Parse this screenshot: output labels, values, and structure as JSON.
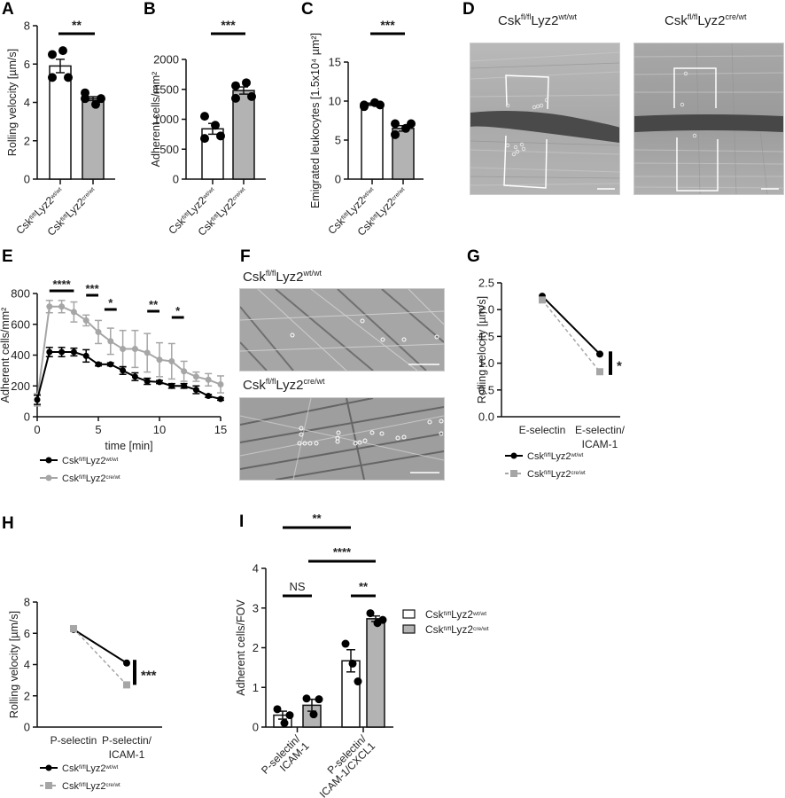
{
  "genotypes": {
    "wt": {
      "base": "Csk",
      "sup1": "fl/fl",
      "mid": "Lyz2",
      "sup2": "wt/wt"
    },
    "cre": {
      "base": "Csk",
      "sup1": "fl/fl",
      "mid": "Lyz2",
      "sup2": "cre/wt"
    }
  },
  "colors": {
    "wt": "#000000",
    "cre": "#a6a6a6",
    "bar_wt": "#ffffff",
    "bar_cre": "#b3b3b3"
  },
  "panels": {
    "A": {
      "letter": "A"
    },
    "B": {
      "letter": "B"
    },
    "C": {
      "letter": "C"
    },
    "D": {
      "letter": "D",
      "left_title": "Csk fl/fl Lyz2 wt/wt",
      "right_title": "Csk fl/fl Lyz2 cre/wt"
    },
    "E": {
      "letter": "E"
    },
    "F": {
      "letter": "F",
      "top_title": "Csk fl/fl Lyz2 wt/wt",
      "bottom_title": "Csk fl/fl Lyz2 cre/wt"
    },
    "G": {
      "letter": "G"
    },
    "H": {
      "letter": "H"
    },
    "I": {
      "letter": "I"
    }
  },
  "chart_data": [
    {
      "panel": "A",
      "type": "bar",
      "title": "",
      "ylabel": "Rolling velocity [µm/s]",
      "xlabel": "",
      "categories": [
        "Csk fl/fl Lyz2 wt/wt",
        "Csk fl/fl Lyz2 cre/wt"
      ],
      "values": [
        5.9,
        4.2
      ],
      "errors": [
        0.35,
        0.1
      ],
      "points": [
        [
          6.5,
          6.7,
          5.3,
          5.3
        ],
        [
          4.5,
          3.9,
          4.2,
          4.2
        ]
      ],
      "ylim": [
        0,
        8
      ],
      "yticks": [
        0,
        2,
        4,
        6,
        8
      ],
      "significance": [
        {
          "between": [
            0,
            1
          ],
          "label": "**"
        }
      ]
    },
    {
      "panel": "B",
      "type": "bar",
      "ylabel": "Adherent cells/mm²",
      "categories": [
        "Csk fl/fl Lyz2 wt/wt",
        "Csk fl/fl Lyz2 cre/wt"
      ],
      "values": [
        840,
        1480
      ],
      "errors": [
        90,
        60
      ],
      "points": [
        [
          1050,
          900,
          680,
          720
        ],
        [
          1560,
          1610,
          1350,
          1380
        ]
      ],
      "ylim": [
        0,
        2000
      ],
      "yticks": [
        0,
        500,
        1000,
        1500,
        2000
      ],
      "significance": [
        {
          "between": [
            0,
            1
          ],
          "label": "***"
        }
      ]
    },
    {
      "panel": "C",
      "type": "bar",
      "ylabel": "Emigrated leukocytes [1.5x10⁴ µm²]",
      "categories": [
        "Csk fl/fl Lyz2 wt/wt",
        "Csk fl/fl Lyz2 cre/wt"
      ],
      "values": [
        9.6,
        6.5
      ],
      "errors": [
        0.15,
        0.35
      ],
      "points": [
        [
          9.3,
          9.8,
          9.5,
          9.5
        ],
        [
          7.1,
          6.5,
          5.7,
          7.1
        ]
      ],
      "ylim": [
        0,
        15
      ],
      "yticks": [
        0,
        5,
        10,
        15
      ],
      "significance": [
        {
          "between": [
            0,
            1
          ],
          "label": "***"
        }
      ]
    },
    {
      "panel": "E",
      "type": "line",
      "xlabel": "time [min]",
      "ylabel": "Adherent cells/mm²",
      "x": [
        0,
        1,
        2,
        3,
        4,
        5,
        6,
        7,
        8,
        9,
        10,
        11,
        12,
        13,
        14,
        15
      ],
      "xlim": [
        0,
        15
      ],
      "xticks": [
        0,
        5,
        10,
        15
      ],
      "ylim": [
        0,
        800
      ],
      "yticks": [
        0,
        200,
        400,
        600,
        800
      ],
      "series": [
        {
          "name": "Csk fl/fl Lyz2 wt/wt",
          "color": "#000000",
          "values": [
            110,
            420,
            420,
            420,
            395,
            340,
            340,
            300,
            260,
            230,
            225,
            200,
            200,
            175,
            135,
            115
          ],
          "errors": [
            30,
            30,
            30,
            25,
            40,
            10,
            10,
            25,
            25,
            20,
            10,
            15,
            15,
            25,
            10,
            8
          ]
        },
        {
          "name": "Csk fl/fl Lyz2 cre/wt",
          "color": "#a6a6a6",
          "values": [
            110,
            715,
            715,
            680,
            625,
            550,
            490,
            440,
            440,
            415,
            370,
            360,
            295,
            260,
            240,
            210
          ],
          "errors": [
            40,
            40,
            40,
            65,
            35,
            75,
            85,
            120,
            120,
            125,
            110,
            115,
            65,
            30,
            40,
            55
          ]
        }
      ],
      "significance": [
        {
          "x_range": [
            1,
            3
          ],
          "label": "****"
        },
        {
          "x_range": [
            4,
            5
          ],
          "label": "***"
        },
        {
          "x_range": [
            5.5,
            6.5
          ],
          "label": "*"
        },
        {
          "x_range": [
            9,
            10
          ],
          "label": "**"
        },
        {
          "x_range": [
            11,
            12
          ],
          "label": "*"
        }
      ],
      "legend_position": "bottom"
    },
    {
      "panel": "G",
      "type": "line",
      "ylabel": "Rolling velocity [µm/s]",
      "categories": [
        "E-selectin",
        "E-selectin/ ICAM-1"
      ],
      "ylim": [
        0,
        2.5
      ],
      "yticks": [
        0.0,
        0.5,
        1.0,
        1.5,
        2.0,
        2.5
      ],
      "series": [
        {
          "name": "Csk fl/fl Lyz2 wt/wt",
          "color": "#000000",
          "marker": "circle",
          "values": [
            2.25,
            1.17
          ]
        },
        {
          "name": "Csk fl/fl Lyz2 cre/wt",
          "color": "#a6a6a6",
          "marker": "square",
          "dashed": true,
          "values": [
            2.18,
            0.84
          ]
        }
      ],
      "significance": [
        {
          "at": 1,
          "label": "*"
        }
      ],
      "legend_position": "bottom"
    },
    {
      "panel": "H",
      "type": "line",
      "ylabel": "Rolling velocity [µm/s]",
      "categories": [
        "P-selectin",
        "P-selectin/ ICAM-1"
      ],
      "ylim": [
        0,
        8
      ],
      "yticks": [
        0,
        2,
        4,
        6,
        8
      ],
      "series": [
        {
          "name": "Csk fl/fl Lyz2 wt/wt",
          "color": "#000000",
          "marker": "circle",
          "values": [
            6.25,
            4.1
          ]
        },
        {
          "name": "Csk fl/fl Lyz2 cre/wt",
          "color": "#a6a6a6",
          "marker": "square",
          "dashed": true,
          "values": [
            6.3,
            2.7
          ]
        }
      ],
      "significance": [
        {
          "at": 1,
          "label": "***"
        }
      ],
      "legend_position": "bottom"
    },
    {
      "panel": "I",
      "type": "bar",
      "ylabel": "Adherent cells/FOV",
      "categories": [
        "P-selectin/ ICAM-1",
        "P-selectin/ ICAM-1/CXCL1"
      ],
      "ylim": [
        0,
        4
      ],
      "yticks": [
        0,
        1,
        2,
        3,
        4
      ],
      "series": [
        {
          "name": "Csk fl/fl Lyz2 wt/wt",
          "color": "#ffffff",
          "values": [
            0.3,
            1.67
          ],
          "errors": [
            0.1,
            0.28
          ],
          "points": [
            [
              0.45,
              0.1,
              0.3
            ],
            [
              2.1,
              1.6,
              1.15
            ]
          ]
        },
        {
          "name": "Csk fl/fl Lyz2 cre/wt",
          "color": "#b3b3b3",
          "values": [
            0.55,
            2.73
          ],
          "errors": [
            0.15,
            0.07
          ],
          "points": [
            [
              0.72,
              0.32,
              0.7
            ],
            [
              2.87,
              2.62,
              2.7
            ]
          ]
        }
      ],
      "significance": [
        {
          "label": "NS",
          "between": "group0 wt vs cre"
        },
        {
          "label": "**",
          "between": "group1 wt vs cre"
        },
        {
          "label": "****",
          "between": "group0 cre vs group1 cre"
        },
        {
          "label": "**",
          "between": "group0 wt vs group1 wt"
        }
      ],
      "legend_position": "right"
    }
  ]
}
